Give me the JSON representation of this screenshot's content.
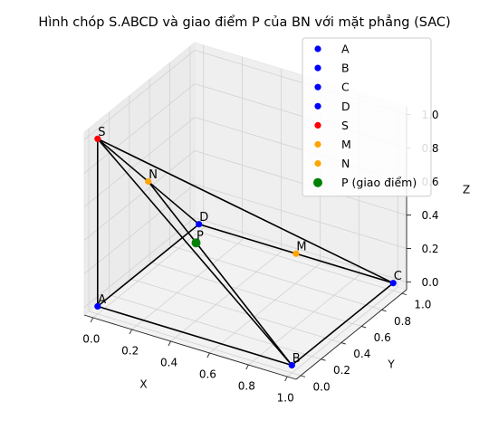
{
  "chart_data": {
    "type": "scatter",
    "projection": "3d",
    "title": "Hình chóp S.ABCD và giao điểm P của BN với mặt phẳng (SAC)",
    "xlabel": "X",
    "ylabel": "Y",
    "zlabel": "Z",
    "xlim": [
      0,
      1
    ],
    "ylim": [
      0,
      1
    ],
    "zlim": [
      0,
      1
    ],
    "xticks": [
      "0.0",
      "0.2",
      "0.4",
      "0.6",
      "0.8",
      "1.0"
    ],
    "yticks": [
      "0.0",
      "0.2",
      "0.4",
      "0.6",
      "0.8",
      "1.0"
    ],
    "zticks": [
      "0.0",
      "0.2",
      "0.4",
      "0.6",
      "0.8",
      "1.0"
    ],
    "grid": true,
    "legend_position": "upper-right",
    "points": [
      {
        "name": "A",
        "x": 0,
        "y": 0,
        "z": 0,
        "color": "#0000ff",
        "label": "A"
      },
      {
        "name": "B",
        "x": 1,
        "y": 0,
        "z": 0,
        "color": "#0000ff",
        "label": "B"
      },
      {
        "name": "C",
        "x": 1,
        "y": 1,
        "z": 0,
        "color": "#0000ff",
        "label": "C"
      },
      {
        "name": "D",
        "x": 0,
        "y": 1,
        "z": 0,
        "color": "#0000ff",
        "label": "D"
      },
      {
        "name": "S",
        "x": 0,
        "y": 0,
        "z": 1,
        "color": "#ff0000",
        "label": "S"
      },
      {
        "name": "M",
        "x": 0.5,
        "y": 1,
        "z": 0,
        "color": "#ffa500",
        "label": "M"
      },
      {
        "name": "N",
        "x": 0,
        "y": 0.5,
        "z": 0.5,
        "color": "#ffa500",
        "label": "N"
      },
      {
        "name": "P (giao điểm)",
        "x": 0.333,
        "y": 0.333,
        "z": 0.333,
        "color": "#008000",
        "label": "P"
      }
    ],
    "edges": [
      [
        "S",
        "A"
      ],
      [
        "S",
        "B"
      ],
      [
        "S",
        "C"
      ],
      [
        "S",
        "D"
      ],
      [
        "A",
        "B"
      ],
      [
        "B",
        "C"
      ],
      [
        "C",
        "D"
      ],
      [
        "D",
        "A"
      ],
      [
        "B",
        "N"
      ]
    ]
  }
}
